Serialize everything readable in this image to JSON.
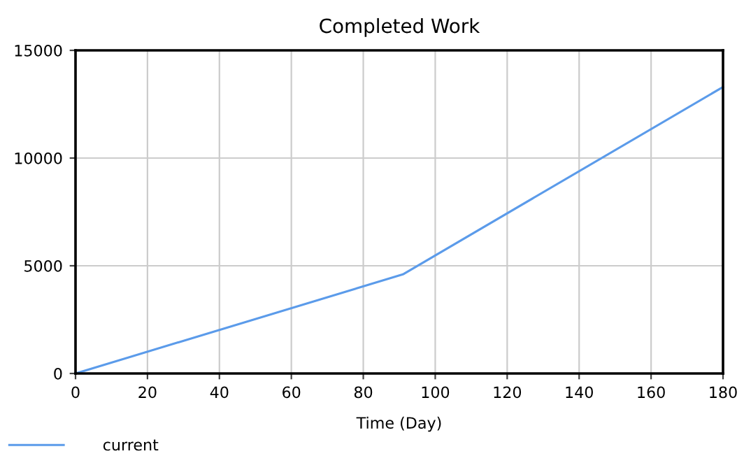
{
  "chart_data": {
    "type": "line",
    "title": "Completed Work",
    "xlabel": "Time (Day)",
    "x": [
      0,
      91,
      180
    ],
    "series": [
      {
        "name": "current",
        "color": "#5b9bea",
        "values": [
          0,
          4600,
          13300
        ]
      }
    ],
    "xlim": [
      0,
      180
    ],
    "xticks": [
      0,
      20,
      40,
      60,
      80,
      100,
      120,
      140,
      160,
      180
    ],
    "ylim": [
      0,
      15000
    ],
    "yticks": [
      0,
      5000,
      10000,
      15000
    ],
    "grid": true,
    "legend": "bottom left",
    "marker": "none",
    "line_style": "solid"
  }
}
